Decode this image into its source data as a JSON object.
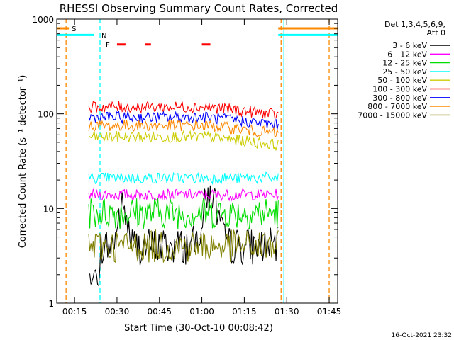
{
  "chart_data": {
    "type": "line",
    "title": "RHESSI Observing Summary Count Rates, Corrected",
    "xlabel": "Start Time (30-Oct-10 00:08:42)",
    "ylabel": "Corrected Count Rate (s⁻¹ detector⁻¹)",
    "y_scale": "log",
    "ylim": [
      1,
      1000
    ],
    "xlim": [
      "00:08:42",
      "01:48"
    ],
    "x_tick_labels": [
      "00:15",
      "00:30",
      "00:45",
      "01:00",
      "01:15",
      "01:30",
      "01:45"
    ],
    "y_tick_labels": [
      "1",
      "10",
      "100",
      "1000"
    ],
    "legend_header": [
      "Det 1,3,4,5,6,9,",
      "Att 0"
    ],
    "legend_position": "right",
    "footer_date": "16-Oct-2021 23:32",
    "data_window": {
      "start": "00:20",
      "end": "01:27"
    },
    "series": [
      {
        "name": "3 - 6 keV",
        "color": "#000000",
        "level": 5
      },
      {
        "name": "6 - 12 keV",
        "color": "#ff00ff",
        "level": 14
      },
      {
        "name": "12 - 25 keV",
        "color": "#00dd00",
        "level": 9
      },
      {
        "name": "25 - 50 keV",
        "color": "#00ffff",
        "level": 21
      },
      {
        "name": "50 - 100 keV",
        "color": "#cccc00",
        "level": 57
      },
      {
        "name": "100 - 300 keV",
        "color": "#ff0000",
        "level": 118
      },
      {
        "name": "300 - 800 keV",
        "color": "#0000ff",
        "level": 92
      },
      {
        "name": "800 - 7000 keV",
        "color": "#ff8800",
        "level": 75
      },
      {
        "name": "7000 - 15000 keV",
        "color": "#808000",
        "level": 4
      }
    ],
    "annotations": [
      {
        "label": "S",
        "color": "#ff8800"
      },
      {
        "label": "N",
        "color": "#00ffff"
      },
      {
        "label": "F",
        "color": "#ff0000"
      }
    ],
    "flare_bars": [
      [
        "00:30",
        "00:33"
      ],
      [
        "00:40",
        "00:42"
      ],
      [
        "01:00",
        "01:03"
      ]
    ],
    "vertical_markers": [
      {
        "time": "00:12",
        "color": "#ff8800",
        "style": "dashed"
      },
      {
        "time": "00:24",
        "color": "#00ffff",
        "style": "dashed"
      },
      {
        "time": "01:28",
        "color": "#ff8800",
        "style": "dashed"
      },
      {
        "time": "01:29",
        "color": "#00ffff",
        "style": "solid"
      },
      {
        "time": "01:45",
        "color": "#ff8800",
        "style": "dashed"
      }
    ]
  }
}
